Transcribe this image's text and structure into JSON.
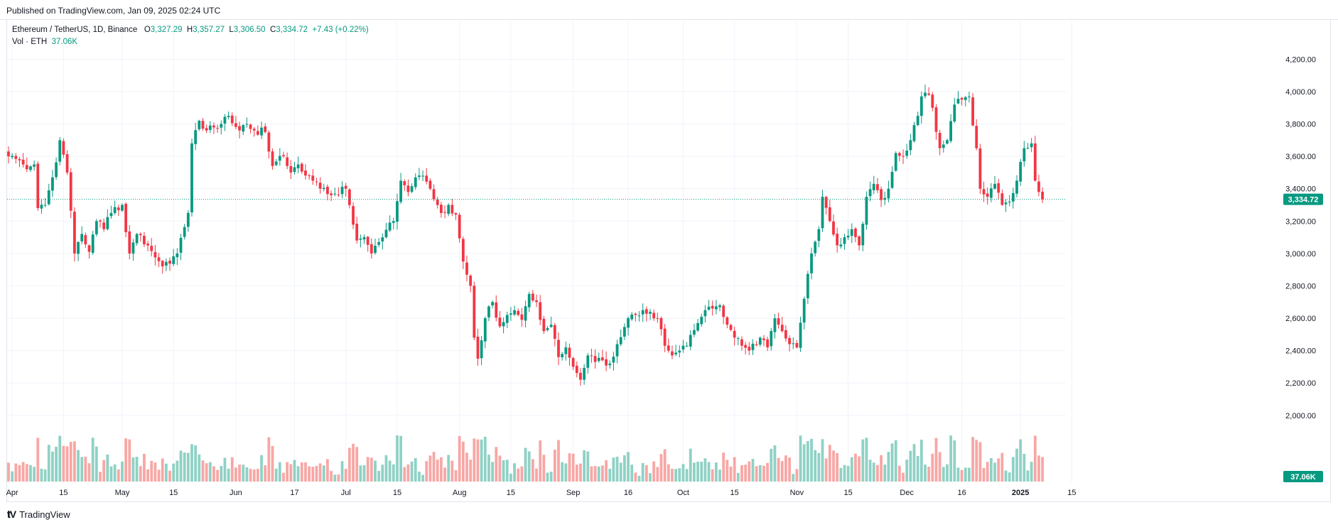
{
  "header": {
    "published": "Published on TradingView.com, Jan 09, 2025 02:24 UTC"
  },
  "legend": {
    "symbol": "Ethereum / TetherUS, 1D, Binance",
    "o_label": "O",
    "o_value": "3,327.29",
    "h_label": "H",
    "h_value": "3,357.27",
    "l_label": "L",
    "l_value": "3,306.50",
    "c_label": "C",
    "c_value": "3,334.72",
    "change": "+7.43 (+0.22%)",
    "vol_label": "Vol · ETH",
    "vol_value": "37.06K"
  },
  "footer": {
    "brand": "TradingView",
    "logo_icon": "tradingview-logo-icon"
  },
  "colors": {
    "up": "#089981",
    "down": "#f23645",
    "vol_up": "#8fd1c5",
    "vol_down": "#f7a7a5",
    "grid": "#f0f3fa",
    "axis_text": "#131722"
  },
  "chart_data": {
    "type": "candlestick",
    "price_range": [
      2100,
      4320
    ],
    "y_ticks": [
      "4,200.00",
      "4,000.00",
      "3,800.00",
      "3,600.00",
      "3,400.00",
      "3,200.00",
      "3,000.00",
      "2,800.00",
      "2,600.00",
      "2,400.00",
      "2,200.00",
      "2,000.00"
    ],
    "y_tick_values": [
      4200,
      4000,
      3800,
      3600,
      3400,
      3200,
      3000,
      2800,
      2600,
      2400,
      2200,
      2000
    ],
    "x_ticks": [
      {
        "label": "Apr",
        "day": 1
      },
      {
        "label": "15",
        "day": 15
      },
      {
        "label": "May",
        "day": 31
      },
      {
        "label": "15",
        "day": 45
      },
      {
        "label": "Jun",
        "day": 62
      },
      {
        "label": "17",
        "day": 78
      },
      {
        "label": "Jul",
        "day": 92
      },
      {
        "label": "15",
        "day": 106
      },
      {
        "label": "Aug",
        "day": 123
      },
      {
        "label": "15",
        "day": 137
      },
      {
        "label": "Sep",
        "day": 154
      },
      {
        "label": "16",
        "day": 169
      },
      {
        "label": "Oct",
        "day": 184
      },
      {
        "label": "15",
        "day": 198
      },
      {
        "label": "Nov",
        "day": 215
      },
      {
        "label": "15",
        "day": 229
      },
      {
        "label": "Dec",
        "day": 245
      },
      {
        "label": "16",
        "day": 260
      },
      {
        "label": "2025",
        "day": 276
      },
      {
        "label": "15",
        "day": 290
      }
    ],
    "start_date": "2024-03-26",
    "last_price": "3,334.72",
    "last_price_value": 3334.72,
    "volume_label": "37.06K",
    "volume_max": 230,
    "anchors": [
      [
        0,
        3600
      ],
      [
        5,
        3520
      ],
      [
        7,
        3550
      ],
      [
        8,
        3280
      ],
      [
        10,
        3300
      ],
      [
        12,
        3470
      ],
      [
        14,
        3700
      ],
      [
        16,
        3500
      ],
      [
        18,
        3000
      ],
      [
        20,
        3120
      ],
      [
        22,
        3010
      ],
      [
        24,
        3200
      ],
      [
        26,
        3150
      ],
      [
        28,
        3250
      ],
      [
        31,
        3300
      ],
      [
        33,
        3000
      ],
      [
        35,
        3120
      ],
      [
        38,
        3050
      ],
      [
        42,
        2920
      ],
      [
        46,
        3000
      ],
      [
        49,
        3250
      ],
      [
        50,
        3680
      ],
      [
        52,
        3820
      ],
      [
        54,
        3760
      ],
      [
        58,
        3800
      ],
      [
        60,
        3850
      ],
      [
        63,
        3760
      ],
      [
        65,
        3800
      ],
      [
        67,
        3760
      ],
      [
        70,
        3750
      ],
      [
        72,
        3540
      ],
      [
        75,
        3600
      ],
      [
        77,
        3500
      ],
      [
        79,
        3550
      ],
      [
        82,
        3480
      ],
      [
        85,
        3400
      ],
      [
        88,
        3360
      ],
      [
        92,
        3400
      ],
      [
        95,
        3080
      ],
      [
        97,
        3100
      ],
      [
        99,
        3000
      ],
      [
        102,
        3100
      ],
      [
        105,
        3200
      ],
      [
        107,
        3450
      ],
      [
        109,
        3380
      ],
      [
        111,
        3470
      ],
      [
        113,
        3480
      ],
      [
        115,
        3400
      ],
      [
        118,
        3250
      ],
      [
        120,
        3300
      ],
      [
        122,
        3240
      ],
      [
        124,
        2950
      ],
      [
        126,
        2800
      ],
      [
        127,
        2480
      ],
      [
        128,
        2350
      ],
      [
        130,
        2600
      ],
      [
        132,
        2700
      ],
      [
        134,
        2550
      ],
      [
        136,
        2620
      ],
      [
        138,
        2650
      ],
      [
        140,
        2590
      ],
      [
        142,
        2750
      ],
      [
        144,
        2700
      ],
      [
        146,
        2520
      ],
      [
        148,
        2560
      ],
      [
        150,
        2360
      ],
      [
        152,
        2420
      ],
      [
        154,
        2300
      ],
      [
        156,
        2220
      ],
      [
        158,
        2370
      ],
      [
        160,
        2330
      ],
      [
        162,
        2340
      ],
      [
        164,
        2320
      ],
      [
        166,
        2440
      ],
      [
        169,
        2600
      ],
      [
        171,
        2620
      ],
      [
        173,
        2650
      ],
      [
        175,
        2640
      ],
      [
        177,
        2600
      ],
      [
        179,
        2430
      ],
      [
        181,
        2370
      ],
      [
        183,
        2400
      ],
      [
        185,
        2430
      ],
      [
        188,
        2570
      ],
      [
        190,
        2650
      ],
      [
        192,
        2660
      ],
      [
        194,
        2680
      ],
      [
        196,
        2560
      ],
      [
        198,
        2480
      ],
      [
        200,
        2430
      ],
      [
        202,
        2400
      ],
      [
        205,
        2480
      ],
      [
        207,
        2420
      ],
      [
        209,
        2600
      ],
      [
        211,
        2520
      ],
      [
        213,
        2440
      ],
      [
        215,
        2420
      ],
      [
        217,
        2720
      ],
      [
        219,
        3000
      ],
      [
        221,
        3150
      ],
      [
        222,
        3350
      ],
      [
        224,
        3200
      ],
      [
        226,
        3050
      ],
      [
        228,
        3100
      ],
      [
        230,
        3150
      ],
      [
        232,
        3050
      ],
      [
        234,
        3350
      ],
      [
        236,
        3430
      ],
      [
        238,
        3330
      ],
      [
        240,
        3400
      ],
      [
        242,
        3620
      ],
      [
        244,
        3600
      ],
      [
        246,
        3700
      ],
      [
        248,
        3850
      ],
      [
        249,
        3970
      ],
      [
        251,
        3980
      ],
      [
        252,
        3900
      ],
      [
        254,
        3650
      ],
      [
        256,
        3700
      ],
      [
        258,
        3920
      ],
      [
        260,
        3950
      ],
      [
        262,
        3970
      ],
      [
        264,
        3650
      ],
      [
        265,
        3400
      ],
      [
        267,
        3350
      ],
      [
        269,
        3430
      ],
      [
        271,
        3300
      ],
      [
        273,
        3320
      ],
      [
        275,
        3450
      ],
      [
        277,
        3650
      ],
      [
        279,
        3680
      ],
      [
        280,
        3450
      ],
      [
        281,
        3380
      ],
      [
        282,
        3335
      ]
    ]
  }
}
